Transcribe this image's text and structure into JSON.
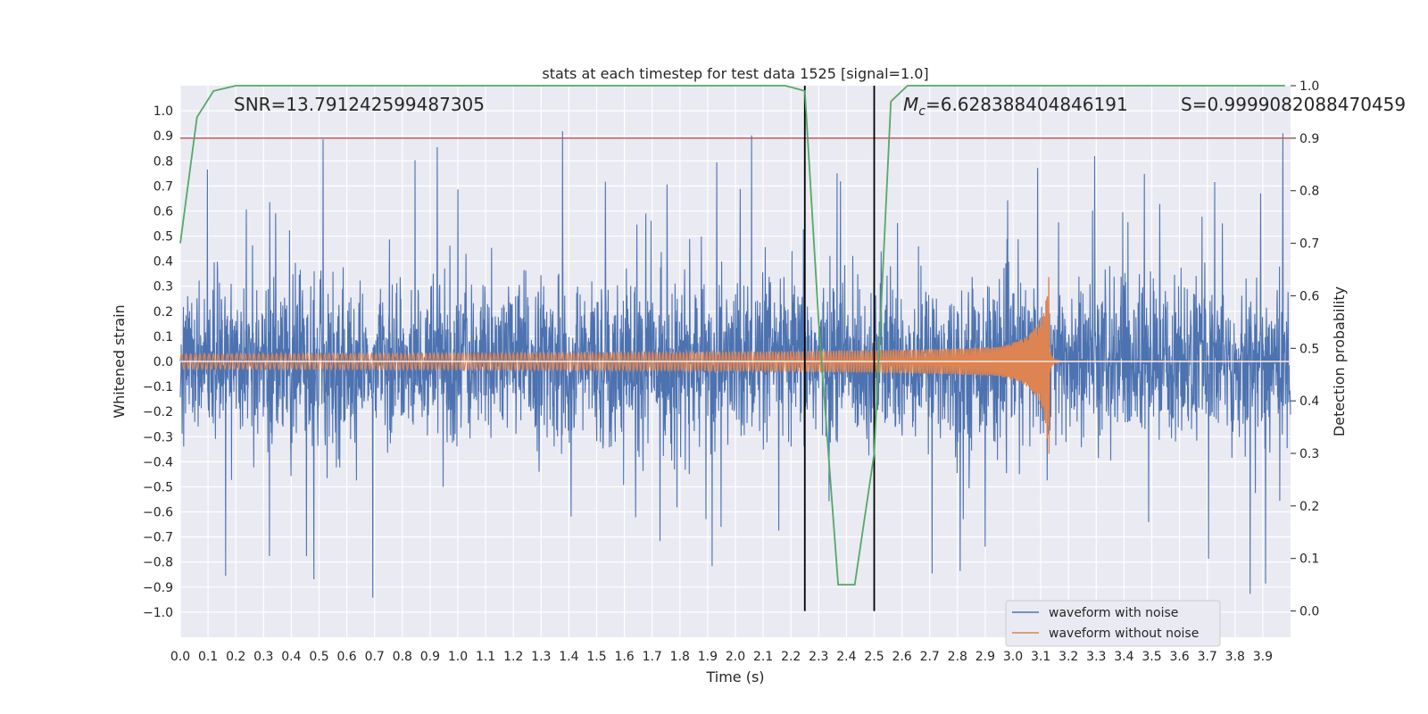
{
  "chart_data": {
    "type": "line",
    "title": "stats at each timestep for test data 1525 [signal=1.0]",
    "xlabel": "Time (s)",
    "ylabel": "Whitened strain",
    "ylabel_right": "Detection probability",
    "xlim": [
      0.0,
      4.0
    ],
    "ylim": [
      -1.1,
      1.1
    ],
    "ylim_right": [
      -0.05,
      1.0
    ],
    "x_ticks": [
      "0.0",
      "0.1",
      "0.2",
      "0.3",
      "0.4",
      "0.5",
      "0.6",
      "0.7",
      "0.8",
      "0.9",
      "1.0",
      "1.1",
      "1.2",
      "1.3",
      "1.4",
      "1.5",
      "1.6",
      "1.7",
      "1.8",
      "1.9",
      "2.0",
      "2.1",
      "2.2",
      "2.3",
      "2.4",
      "2.5",
      "2.6",
      "2.7",
      "2.8",
      "2.9",
      "3.0",
      "3.1",
      "3.2",
      "3.3",
      "3.4",
      "3.5",
      "3.6",
      "3.7",
      "3.8",
      "3.9"
    ],
    "y_ticks": [
      "1.0",
      "0.9",
      "0.8",
      "0.7",
      "0.6",
      "0.5",
      "0.4",
      "0.3",
      "0.2",
      "0.1",
      "0.0",
      "−0.1",
      "−0.2",
      "−0.3",
      "−0.4",
      "−0.5",
      "−0.6",
      "−0.7",
      "−0.8",
      "−0.9",
      "−1.0"
    ],
    "y_right_ticks": [
      "1.0",
      "0.9",
      "0.8",
      "0.7",
      "0.6",
      "0.5",
      "0.4",
      "0.3",
      "0.2",
      "0.1",
      "0.0"
    ],
    "grid": true,
    "annotations": {
      "snr": "SNR=13.791242599487305",
      "mc": "=6.628388404846191",
      "mc_symbol": "M",
      "mc_sub": "c",
      "s": "S=0.9999082088470459"
    },
    "threshold": {
      "value": 0.9,
      "axis": "right",
      "color": "#c44e52"
    },
    "vlines": [
      2.25,
      2.5
    ],
    "series": [
      {
        "name": "waveform with noise",
        "color": "#4c72b0",
        "kind": "noise",
        "typical_amplitude": 0.4,
        "peak_max": 1.0,
        "peak_min": -0.98
      },
      {
        "name": "waveform without noise",
        "color": "#dd8452",
        "kind": "chirp",
        "start_amplitude": 0.03,
        "peak_amplitude": 0.4,
        "merger_time": 3.13
      },
      {
        "name": "detection probability",
        "color": "#55a868",
        "axis": "right",
        "x": [
          0.0,
          0.06,
          0.12,
          0.2,
          2.18,
          2.25,
          2.3,
          2.37,
          2.43,
          2.5,
          2.56,
          2.62,
          3.98
        ],
        "y": [
          0.7,
          0.94,
          0.99,
          1.0,
          1.0,
          0.99,
          0.55,
          0.05,
          0.05,
          0.3,
          0.97,
          1.0,
          1.0
        ]
      }
    ],
    "legend": {
      "position": "lower-right",
      "entries": [
        "waveform with noise",
        "waveform without noise"
      ]
    }
  }
}
